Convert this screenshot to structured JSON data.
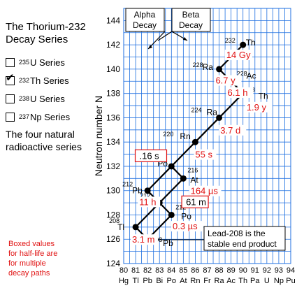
{
  "sidebar": {
    "title_line1": "The Thorium-232",
    "title_line2": "Decay Series",
    "series": [
      {
        "mass": "235",
        "name": "U Series",
        "checked": false
      },
      {
        "mass": "232",
        "name": "Th Series",
        "checked": true
      },
      {
        "mass": "238",
        "name": "U Series",
        "checked": false
      },
      {
        "mass": "237",
        "name": "Np Series",
        "checked": false
      }
    ],
    "caption_line1": "The four natural",
    "caption_line2": "radioactive series",
    "note_lines": [
      "Boxed values",
      "for half-life are",
      "for multiple",
      "decay paths"
    ]
  },
  "chart_data": {
    "type": "scatter",
    "ylabel": "Neutron number N",
    "xlim": [
      80,
      94
    ],
    "ylim": [
      124,
      145
    ],
    "x_ticks": [
      80,
      81,
      82,
      83,
      84,
      85,
      86,
      87,
      88,
      89,
      90,
      91,
      92,
      93,
      94
    ],
    "x_element_labels": [
      "Hg",
      "Tl",
      "Pb",
      "Bi",
      "Po",
      "At",
      "Rn",
      "Fr",
      "Ra",
      "Ac",
      "Th",
      "Pa",
      "U",
      "Np",
      "Pu"
    ],
    "y_ticks": [
      124,
      126,
      128,
      130,
      132,
      134,
      136,
      138,
      140,
      142,
      144
    ],
    "nuclides": [
      {
        "z": 90,
        "n": 142,
        "mass": "232",
        "symbol": "Th"
      },
      {
        "z": 88,
        "n": 140,
        "mass": "228",
        "symbol": "Ra"
      },
      {
        "z": 89,
        "n": 139,
        "mass": "228",
        "symbol": "Ac"
      },
      {
        "z": 90,
        "n": 138,
        "mass": "228",
        "symbol": "Th"
      },
      {
        "z": 88,
        "n": 136,
        "mass": "224",
        "symbol": "Ra"
      },
      {
        "z": 86,
        "n": 134,
        "mass": "220",
        "symbol": "Rn"
      },
      {
        "z": 84,
        "n": 132,
        "mass": "216",
        "symbol": "Po"
      },
      {
        "z": 85,
        "n": 131,
        "mass": "216",
        "symbol": "At"
      },
      {
        "z": 82,
        "n": 130,
        "mass": "212",
        "symbol": "Pb"
      },
      {
        "z": 83,
        "n": 129,
        "mass": "212",
        "symbol": "Bi"
      },
      {
        "z": 84,
        "n": 128,
        "mass": "212",
        "symbol": "Po"
      },
      {
        "z": 81,
        "n": 127,
        "mass": "208",
        "symbol": "Tl"
      },
      {
        "z": 82,
        "n": 126,
        "mass": "208",
        "symbol": "Pb"
      }
    ],
    "decays": [
      [
        90,
        142,
        88,
        140
      ],
      [
        88,
        140,
        89,
        139
      ],
      [
        89,
        139,
        90,
        138
      ],
      [
        90,
        138,
        88,
        136
      ],
      [
        88,
        136,
        86,
        134
      ],
      [
        86,
        134,
        84,
        132
      ],
      [
        84,
        132,
        82,
        130
      ],
      [
        84,
        132,
        85,
        131
      ],
      [
        85,
        131,
        83,
        129
      ],
      [
        82,
        130,
        83,
        129
      ],
      [
        83,
        129,
        81,
        127
      ],
      [
        83,
        129,
        84,
        128
      ],
      [
        81,
        127,
        82,
        126
      ],
      [
        84,
        128,
        82,
        126
      ]
    ],
    "half_lives": [
      {
        "text": "14 Gy",
        "z": 88.6,
        "n": 141.2,
        "boxed": false
      },
      {
        "text": "6.7 y",
        "z": 87.7,
        "n": 139.1,
        "boxed": false
      },
      {
        "text": "6.1 h",
        "z": 88.7,
        "n": 138.1,
        "boxed": false
      },
      {
        "text": "1.9 y",
        "z": 90.3,
        "n": 136.9,
        "boxed": false
      },
      {
        "text": "3.7 d",
        "z": 88.1,
        "n": 135.0,
        "boxed": false
      },
      {
        "text": "55 s",
        "z": 86.0,
        "n": 133.0,
        "boxed": false
      },
      {
        "text": ".16 s",
        "z": 81.2,
        "n": 132.9,
        "boxed": true
      },
      {
        "text": "164 µs",
        "z": 85.6,
        "n": 130.0,
        "boxed": false
      },
      {
        "text": "11 h",
        "z": 81.3,
        "n": 129.1,
        "boxed": false
      },
      {
        "text": "61 m",
        "z": 85.1,
        "n": 129.1,
        "boxed": true
      },
      {
        "text": "0.3 µs",
        "z": 84.1,
        "n": 127.1,
        "boxed": false
      },
      {
        "text": "3.1 m",
        "z": 80.7,
        "n": 126.0,
        "boxed": false
      }
    ],
    "legend": {
      "alpha_line1": "Alpha",
      "alpha_line2": "Decay",
      "beta_line1": "Beta",
      "beta_line2": "Decay"
    },
    "annotation_line1": "Lead-208 is the",
    "annotation_line2": "stable end product",
    "colors": {
      "grid": "#1e6fe0",
      "halflife": "#e01010",
      "line": "#000000"
    }
  }
}
